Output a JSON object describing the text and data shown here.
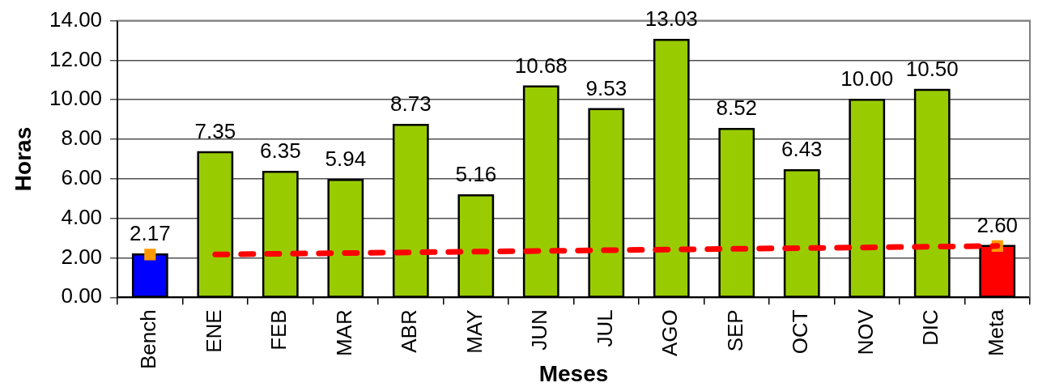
{
  "chart_data": {
    "type": "bar",
    "xlabel": "Meses",
    "ylabel": "Horas",
    "categories": [
      "Bench",
      "ENE",
      "FEB",
      "MAR",
      "ABR",
      "MAY",
      "JUN",
      "JUL",
      "AGO",
      "SEP",
      "OCT",
      "NOV",
      "DIC",
      "Meta"
    ],
    "series": [
      {
        "values": [
          2.17,
          7.35,
          6.35,
          5.94,
          8.73,
          5.16,
          10.68,
          9.53,
          13.03,
          8.52,
          6.43,
          10.0,
          10.5,
          2.6
        ],
        "colors": [
          "#0000ff",
          "#99cc00",
          "#99cc00",
          "#99cc00",
          "#99cc00",
          "#99cc00",
          "#99cc00",
          "#99cc00",
          "#99cc00",
          "#99cc00",
          "#99cc00",
          "#99cc00",
          "#99cc00",
          "#ff0000"
        ],
        "value_labels": [
          "2.17",
          "7.35",
          "6.35",
          "5.94",
          "8.73",
          "5.16",
          "10.68",
          "9.53",
          "13.03",
          "8.52",
          "6.43",
          "10.00",
          "10.50",
          "2.60"
        ]
      },
      {
        "type": "line",
        "x": [
          "ENE",
          "Meta"
        ],
        "values": [
          2.17,
          2.6
        ],
        "color": "#ff0000",
        "line_style": "dashed",
        "marker": "none"
      },
      {
        "type": "scatter",
        "x": [
          "Bench",
          "Meta"
        ],
        "values": [
          2.17,
          2.6
        ],
        "color": "#ff9900",
        "marker": "square"
      }
    ],
    "ylim": [
      0,
      14
    ],
    "yticks": [
      {
        "value": 0,
        "label": "0.00"
      },
      {
        "value": 2,
        "label": "2.00"
      },
      {
        "value": 4,
        "label": "4.00"
      },
      {
        "value": 6,
        "label": "6.00"
      },
      {
        "value": 8,
        "label": "8.00"
      },
      {
        "value": 10,
        "label": "10.00"
      },
      {
        "value": 12,
        "label": "12.00"
      },
      {
        "value": 14,
        "label": "14.00"
      }
    ],
    "grid": "y",
    "legend": false
  }
}
